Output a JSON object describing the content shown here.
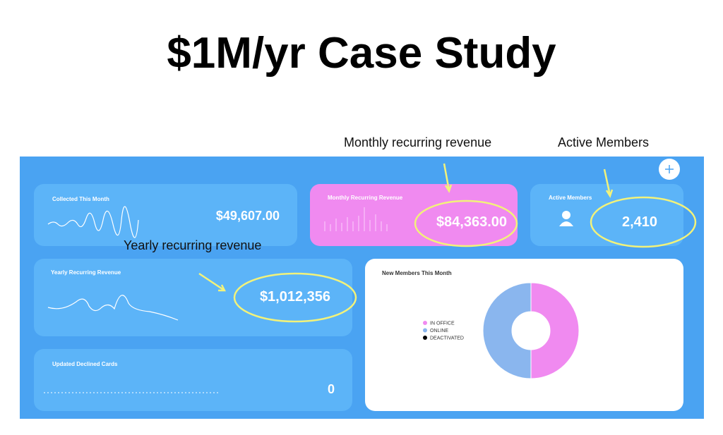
{
  "title": "$1M/yr Case Study",
  "annotations": {
    "monthly": "Monthly recurring revenue",
    "active": "Active Members",
    "yearly": "Yearly recurring revenue"
  },
  "cards": {
    "collected": {
      "label": "Collected This Month",
      "value": "$49,607.00"
    },
    "monthly": {
      "label": "Monthly Recurring Revenue",
      "value": "$84,363.00"
    },
    "active": {
      "label": "Active Members",
      "value": "2,410"
    },
    "yearly": {
      "label": "Yearly Recurring Revenue",
      "value": "$1,012,356"
    },
    "declined": {
      "label": "Updated Declined Cards",
      "value": "0"
    }
  },
  "chart_data": {
    "type": "pie",
    "title": "New Members This Month",
    "donut": true,
    "categories": [
      "IN OFFICE",
      "ONLINE",
      "DEACTIVATED"
    ],
    "values": [
      50,
      50,
      0
    ],
    "colors": [
      "#f08af0",
      "#8ab6ee",
      "#000000"
    ]
  }
}
